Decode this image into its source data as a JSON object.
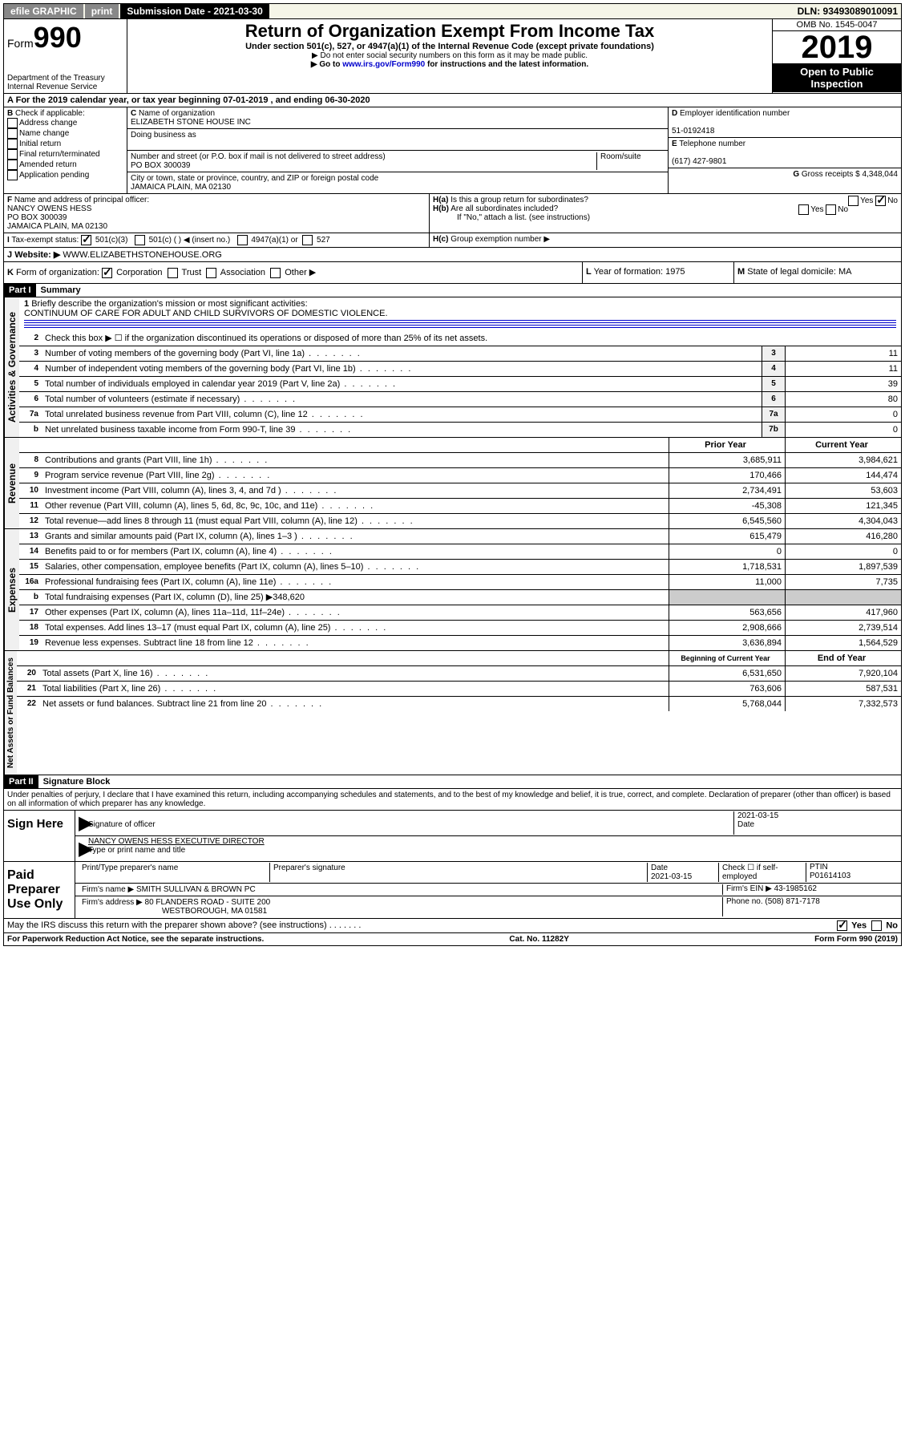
{
  "topbar": {
    "efile": "efile GRAPHIC",
    "print": "print",
    "subdate_label": "Submission Date - 2021-03-30",
    "dln": "DLN: 93493089010091"
  },
  "header": {
    "form_label": "Form",
    "form_num": "990",
    "dept": "Department of the Treasury",
    "irs": "Internal Revenue Service",
    "title": "Return of Organization Exempt From Income Tax",
    "sub": "Under section 501(c), 527, or 4947(a)(1) of the Internal Revenue Code (except private foundations)",
    "note1": "▶ Do not enter social security numbers on this form as it may be made public.",
    "note2_a": "▶ Go to ",
    "note2_link": "www.irs.gov/Form990",
    "note2_b": " for instructions and the latest information.",
    "omb": "OMB No. 1545-0047",
    "year": "2019",
    "open": "Open to Public Inspection"
  },
  "A": {
    "text": "For the 2019 calendar year, or tax year beginning 07-01-2019    , and ending 06-30-2020"
  },
  "B": {
    "label": "Check if applicable:",
    "items": [
      "Address change",
      "Name change",
      "Initial return",
      "Final return/terminated",
      "Amended return",
      "Application pending"
    ]
  },
  "C": {
    "name_label": "Name of organization",
    "name": "ELIZABETH STONE HOUSE INC",
    "dba_label": "Doing business as",
    "addr_label": "Number and street (or P.O. box if mail is not delivered to street address)",
    "addr": "PO BOX 300039",
    "room_label": "Room/suite",
    "city_label": "City or town, state or province, country, and ZIP or foreign postal code",
    "city": "JAMAICA PLAIN, MA  02130"
  },
  "D": {
    "label": "Employer identification number",
    "val": "51-0192418"
  },
  "E": {
    "label": "Telephone number",
    "val": "(617) 427-9801"
  },
  "G": {
    "label": "Gross receipts $",
    "val": "4,348,044"
  },
  "F": {
    "label": "Name and address of principal officer:",
    "name": "NANCY OWENS HESS",
    "addr1": "PO BOX 300039",
    "addr2": "JAMAICA PLAIN, MA  02130"
  },
  "H": {
    "a": "Is this a group return for subordinates?",
    "b": "Are all subordinates included?",
    "note": "If \"No,\" attach a list. (see instructions)",
    "c": "Group exemption number ▶",
    "yes": "Yes",
    "no": "No"
  },
  "I": {
    "label": "Tax-exempt status:",
    "c3": "501(c)(3)",
    "c": "501(c) (   ) ◀ (insert no.)",
    "a1": "4947(a)(1) or",
    "s527": "527"
  },
  "J": {
    "label": "Website: ▶",
    "val": "WWW.ELIZABETHSTONEHOUSE.ORG"
  },
  "K": {
    "label": "Form of organization:",
    "corp": "Corporation",
    "trust": "Trust",
    "assoc": "Association",
    "other": "Other ▶"
  },
  "L": {
    "label": "Year of formation:",
    "val": "1975"
  },
  "M": {
    "label": "State of legal domicile:",
    "val": "MA"
  },
  "part1": {
    "label": "Part I",
    "title": "Summary",
    "q1": "Briefly describe the organization's mission or most significant activities:",
    "mission": "CONTINUUM OF CARE FOR ADULT AND CHILD SURVIVORS OF DOMESTIC VIOLENCE.",
    "q2": "Check this box ▶ ☐ if the organization discontinued its operations or disposed of more than 25% of its net assets.",
    "lines": [
      {
        "n": "3",
        "t": "Number of voting members of the governing body (Part VI, line 1a)",
        "b": "3",
        "v": "11"
      },
      {
        "n": "4",
        "t": "Number of independent voting members of the governing body (Part VI, line 1b)",
        "b": "4",
        "v": "11"
      },
      {
        "n": "5",
        "t": "Total number of individuals employed in calendar year 2019 (Part V, line 2a)",
        "b": "5",
        "v": "39"
      },
      {
        "n": "6",
        "t": "Total number of volunteers (estimate if necessary)",
        "b": "6",
        "v": "80"
      },
      {
        "n": "7a",
        "t": "Total unrelated business revenue from Part VIII, column (C), line 12",
        "b": "7a",
        "v": "0"
      },
      {
        "n": "b",
        "t": "Net unrelated business taxable income from Form 990-T, line 39",
        "b": "7b",
        "v": "0"
      }
    ],
    "col_prior": "Prior Year",
    "col_current": "Current Year",
    "rev": [
      {
        "n": "8",
        "t": "Contributions and grants (Part VIII, line 1h)",
        "p": "3,685,911",
        "c": "3,984,621"
      },
      {
        "n": "9",
        "t": "Program service revenue (Part VIII, line 2g)",
        "p": "170,466",
        "c": "144,474"
      },
      {
        "n": "10",
        "t": "Investment income (Part VIII, column (A), lines 3, 4, and 7d )",
        "p": "2,734,491",
        "c": "53,603"
      },
      {
        "n": "11",
        "t": "Other revenue (Part VIII, column (A), lines 5, 6d, 8c, 9c, 10c, and 11e)",
        "p": "-45,308",
        "c": "121,345"
      },
      {
        "n": "12",
        "t": "Total revenue—add lines 8 through 11 (must equal Part VIII, column (A), line 12)",
        "p": "6,545,560",
        "c": "4,304,043"
      }
    ],
    "exp": [
      {
        "n": "13",
        "t": "Grants and similar amounts paid (Part IX, column (A), lines 1–3 )",
        "p": "615,479",
        "c": "416,280"
      },
      {
        "n": "14",
        "t": "Benefits paid to or for members (Part IX, column (A), line 4)",
        "p": "0",
        "c": "0"
      },
      {
        "n": "15",
        "t": "Salaries, other compensation, employee benefits (Part IX, column (A), lines 5–10)",
        "p": "1,718,531",
        "c": "1,897,539"
      },
      {
        "n": "16a",
        "t": "Professional fundraising fees (Part IX, column (A), line 11e)",
        "p": "11,000",
        "c": "7,735"
      },
      {
        "n": "b",
        "t": "Total fundraising expenses (Part IX, column (D), line 25) ▶348,620",
        "p": "",
        "c": ""
      },
      {
        "n": "17",
        "t": "Other expenses (Part IX, column (A), lines 11a–11d, 11f–24e)",
        "p": "563,656",
        "c": "417,960"
      },
      {
        "n": "18",
        "t": "Total expenses. Add lines 13–17 (must equal Part IX, column (A), line 25)",
        "p": "2,908,666",
        "c": "2,739,514"
      },
      {
        "n": "19",
        "t": "Revenue less expenses. Subtract line 18 from line 12",
        "p": "3,636,894",
        "c": "1,564,529"
      }
    ],
    "col_begin": "Beginning of Current Year",
    "col_end": "End of Year",
    "net": [
      {
        "n": "20",
        "t": "Total assets (Part X, line 16)",
        "p": "6,531,650",
        "c": "7,920,104"
      },
      {
        "n": "21",
        "t": "Total liabilities (Part X, line 26)",
        "p": "763,606",
        "c": "587,531"
      },
      {
        "n": "22",
        "t": "Net assets or fund balances. Subtract line 21 from line 20",
        "p": "5,768,044",
        "c": "7,332,573"
      }
    ],
    "vert_gov": "Activities & Governance",
    "vert_rev": "Revenue",
    "vert_exp": "Expenses",
    "vert_net": "Net Assets or Fund Balances"
  },
  "part2": {
    "label": "Part II",
    "title": "Signature Block",
    "penalty": "Under penalties of perjury, I declare that I have examined this return, including accompanying schedules and statements, and to the best of my knowledge and belief, it is true, correct, and complete. Declaration of preparer (other than officer) is based on all information of which preparer has any knowledge.",
    "sign_here": "Sign Here",
    "sig_officer": "Signature of officer",
    "sig_date": "2021-03-15",
    "date_lbl": "Date",
    "officer_name": "NANCY OWENS HESS EXECUTIVE DIRECTOR",
    "type_name": "Type or print name and title",
    "paid": "Paid Preparer Use Only",
    "prep_name_lbl": "Print/Type preparer's name",
    "prep_sig_lbl": "Preparer's signature",
    "prep_date_lbl": "Date",
    "prep_date": "2021-03-15",
    "check_self": "Check ☐ if self-employed",
    "ptin_lbl": "PTIN",
    "ptin": "P01614103",
    "firm_name_lbl": "Firm's name    ▶",
    "firm_name": "SMITH SULLIVAN & BROWN PC",
    "firm_ein_lbl": "Firm's EIN ▶",
    "firm_ein": "43-1985162",
    "firm_addr_lbl": "Firm's address ▶",
    "firm_addr1": "80 FLANDERS ROAD - SUITE 200",
    "firm_addr2": "WESTBOROUGH, MA  01581",
    "phone_lbl": "Phone no.",
    "phone": "(508) 871-7178",
    "discuss": "May the IRS discuss this return with the preparer shown above? (see instructions)",
    "yes": "Yes",
    "no": "No"
  },
  "footer": {
    "pra": "For Paperwork Reduction Act Notice, see the separate instructions.",
    "cat": "Cat. No. 11282Y",
    "form": "Form 990 (2019)"
  }
}
